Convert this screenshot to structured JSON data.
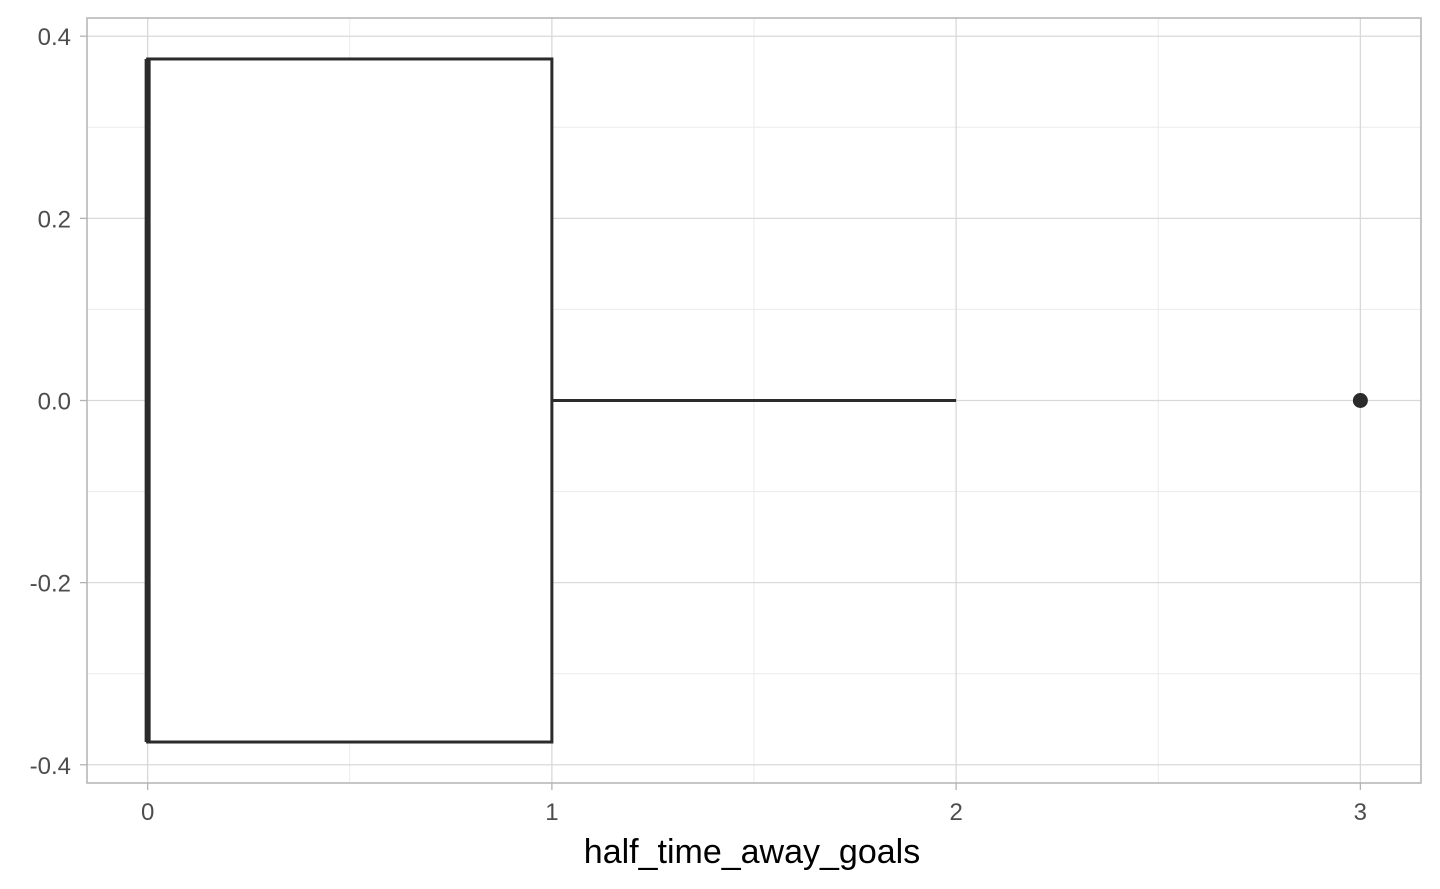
{
  "chart_data": {
    "type": "boxplot",
    "orientation": "horizontal",
    "variable": "half_time_away_goals",
    "xlabel": "half_time_away_goals",
    "ylabel": "",
    "title": "",
    "xlim": [
      -0.15,
      3.15
    ],
    "ylim": [
      -0.42,
      0.42
    ],
    "x_ticks": [
      {
        "value": 0,
        "label": "0"
      },
      {
        "value": 1,
        "label": "1"
      },
      {
        "value": 2,
        "label": "2"
      },
      {
        "value": 3,
        "label": "3"
      }
    ],
    "x_minor_ticks": [
      0.5,
      1.5,
      2.5
    ],
    "y_ticks": [
      {
        "value": 0.4,
        "label": "0.4"
      },
      {
        "value": 0.2,
        "label": "0.2"
      },
      {
        "value": 0.0,
        "label": "0.0"
      },
      {
        "value": -0.2,
        "label": "-0.2"
      },
      {
        "value": -0.4,
        "label": "-0.4"
      }
    ],
    "y_minor_ticks": [
      0.3,
      0.1,
      -0.1,
      -0.3
    ],
    "box": {
      "min": 0,
      "q1": 0,
      "median": 0,
      "q3": 1,
      "max": 2,
      "outliers": [
        3
      ],
      "y_center": 0,
      "half_height": 0.375
    },
    "grid": true,
    "colors": {
      "box_stroke": "#2b2b2b",
      "grid_major": "#d9d9d9",
      "grid_minor": "#ebebeb",
      "panel_border": "#b3b3b3",
      "tick_text": "#4d4d4d",
      "axis_title": "#000000"
    }
  }
}
